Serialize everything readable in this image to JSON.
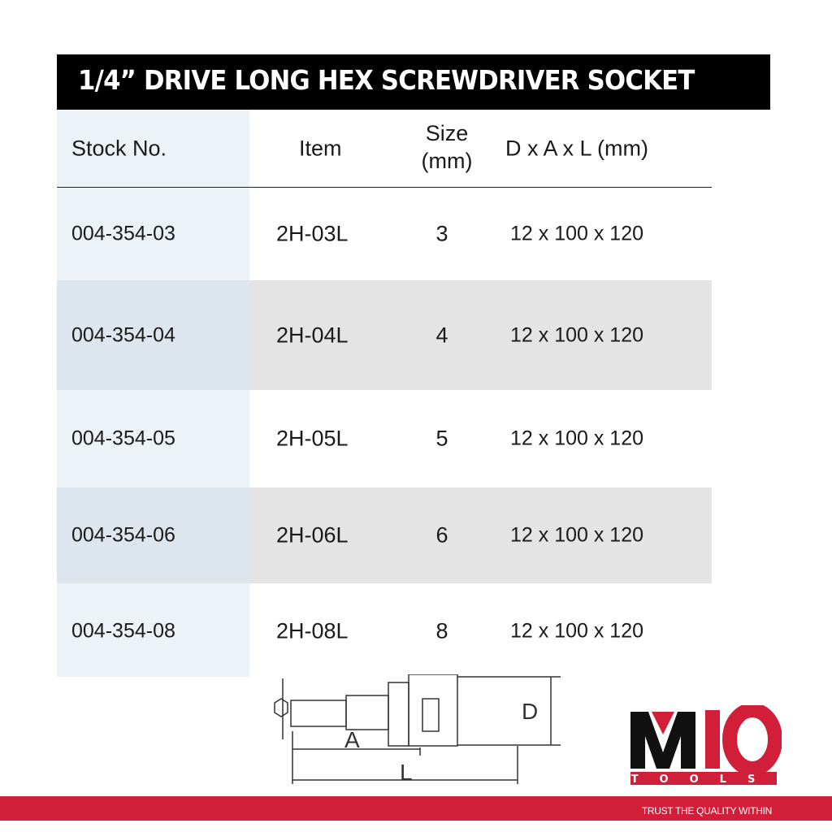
{
  "title": "1/4” DRIVE LONG HEX SCREWDRIVER SOCKET",
  "table": {
    "headers": {
      "stock": "Stock No.",
      "item": "Item",
      "size_line1": "Size",
      "size_line2": "(mm)",
      "dim": "D x A x L (mm)"
    },
    "rows": [
      {
        "stock": "004-354-03",
        "item": "2H-03L",
        "size": "3",
        "dim": "12 x 100 x 120"
      },
      {
        "stock": "004-354-04",
        "item": "2H-04L",
        "size": "4",
        "dim": "12 x 100 x 120"
      },
      {
        "stock": "004-354-05",
        "item": "2H-05L",
        "size": "5",
        "dim": "12 x 100 x 120"
      },
      {
        "stock": "004-354-06",
        "item": "2H-06L",
        "size": "6",
        "dim": "12 x 100 x 120"
      },
      {
        "stock": "004-354-08",
        "item": "2H-08L",
        "size": "8",
        "dim": "12 x 100 x 120"
      }
    ]
  },
  "diagram": {
    "label_a": "A",
    "label_l": "L",
    "label_d": "D"
  },
  "brand": {
    "logo_text": "M10",
    "logo_sub": "TOOLS",
    "slogan": "TRUST THE QUALITY WITHIN",
    "color": "#d11f3a"
  }
}
